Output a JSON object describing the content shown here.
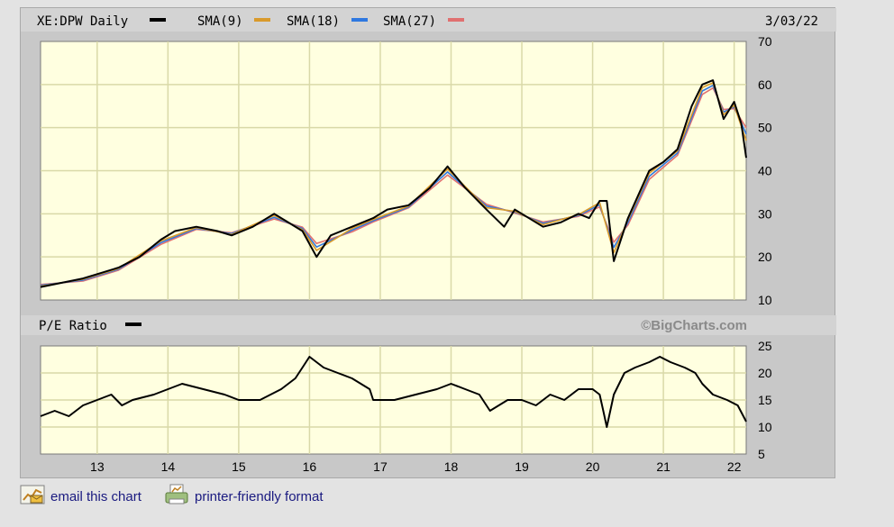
{
  "header": {
    "symbol_label": "XE:DPW Daily",
    "date": "3/03/22",
    "legend": [
      {
        "label": "SMA(9)",
        "color": "#d99a2b"
      },
      {
        "label": "SMA(18)",
        "color": "#2f78e0"
      },
      {
        "label": "SMA(27)",
        "color": "#e07070"
      }
    ],
    "price_line_color": "#000000"
  },
  "pe_panel": {
    "label": "P/E Ratio",
    "watermark": "©BigCharts.com"
  },
  "colors": {
    "plot_bg": "#ffffe0",
    "grid": "#d9d9a8",
    "frame": "#c8c8c8"
  },
  "links": [
    {
      "label": "email this chart",
      "icon": "email-chart-icon"
    },
    {
      "label": "printer-friendly format",
      "icon": "printer-icon"
    }
  ],
  "chart_data": [
    {
      "type": "line",
      "title": "XE:DPW Daily",
      "x_ticks": [
        "13",
        "14",
        "15",
        "16",
        "17",
        "18",
        "19",
        "20",
        "21",
        "22"
      ],
      "y_ticks": [
        10,
        20,
        30,
        40,
        50,
        60,
        70
      ],
      "ylim": [
        10,
        70
      ],
      "xlim": [
        2012.2,
        2022.17
      ],
      "grid": true,
      "series": [
        {
          "name": "XE:DPW Daily",
          "color": "#000000",
          "x": [
            2012.2,
            2012.5,
            2012.8,
            2013.0,
            2013.3,
            2013.6,
            2013.9,
            2014.1,
            2014.4,
            2014.7,
            2014.9,
            2015.2,
            2015.5,
            2015.7,
            2015.9,
            2016.1,
            2016.3,
            2016.6,
            2016.9,
            2017.1,
            2017.4,
            2017.7,
            2017.95,
            2018.2,
            2018.5,
            2018.75,
            2018.9,
            2019.0,
            2019.3,
            2019.55,
            2019.8,
            2019.95,
            2020.1,
            2020.2,
            2020.3,
            2020.5,
            2020.8,
            2021.0,
            2021.2,
            2021.4,
            2021.55,
            2021.7,
            2021.85,
            2022.0,
            2022.1,
            2022.17
          ],
          "y": [
            13,
            14,
            15,
            16,
            17.5,
            20,
            24,
            26,
            27,
            26,
            25,
            27,
            30,
            28,
            26,
            20,
            25,
            27,
            29,
            31,
            32,
            36,
            41,
            36,
            31,
            27,
            31,
            30,
            27,
            28,
            30,
            29,
            33,
            33,
            19,
            29,
            40,
            42,
            45,
            55,
            60,
            61,
            52,
            56,
            51,
            43
          ]
        },
        {
          "name": "SMA(9)",
          "color": "#d99a2b",
          "x": [
            2012.2,
            2012.8,
            2013.3,
            2013.9,
            2014.4,
            2014.9,
            2015.5,
            2015.9,
            2016.1,
            2016.6,
            2016.9,
            2017.4,
            2017.95,
            2018.5,
            2018.9,
            2019.3,
            2019.8,
            2020.1,
            2020.3,
            2020.5,
            2020.8,
            2021.2,
            2021.55,
            2021.7,
            2021.85,
            2022.0,
            2022.17
          ],
          "y": [
            13.2,
            14.8,
            17.3,
            23.7,
            26.8,
            25.2,
            29.6,
            26.3,
            21.5,
            26.6,
            28.7,
            31.8,
            40.4,
            31.4,
            30.6,
            27.5,
            29.8,
            32.6,
            21,
            28.6,
            39.4,
            44.6,
            59.3,
            60.4,
            53,
            55.2,
            47
          ]
        },
        {
          "name": "SMA(18)",
          "color": "#2f78e0",
          "x": [
            2012.2,
            2012.8,
            2013.3,
            2013.9,
            2014.4,
            2014.9,
            2015.5,
            2015.9,
            2016.1,
            2016.6,
            2016.9,
            2017.4,
            2017.95,
            2018.5,
            2018.9,
            2019.3,
            2019.8,
            2020.1,
            2020.3,
            2020.5,
            2020.8,
            2021.2,
            2021.55,
            2021.7,
            2021.85,
            2022.0,
            2022.17
          ],
          "y": [
            13.4,
            14.6,
            17.1,
            23.3,
            26.6,
            25.4,
            29.2,
            26.6,
            22.3,
            26.2,
            28.4,
            31.6,
            39.7,
            31.8,
            30.4,
            27.8,
            29.6,
            32.1,
            22.2,
            28,
            38.7,
            44.1,
            58.5,
            59.8,
            53.6,
            54.8,
            48.5
          ]
        },
        {
          "name": "SMA(27)",
          "color": "#e07070",
          "x": [
            2012.2,
            2012.8,
            2013.3,
            2013.9,
            2014.4,
            2014.9,
            2015.5,
            2015.9,
            2016.1,
            2016.6,
            2016.9,
            2017.4,
            2017.95,
            2018.5,
            2018.9,
            2019.3,
            2019.8,
            2020.1,
            2020.3,
            2020.5,
            2020.8,
            2021.2,
            2021.55,
            2021.7,
            2021.85,
            2022.0,
            2022.17
          ],
          "y": [
            13.6,
            14.4,
            16.9,
            22.9,
            26.4,
            25.6,
            28.8,
            26.9,
            23.1,
            25.8,
            28.1,
            31.4,
            39,
            32.2,
            30.2,
            28.1,
            29.4,
            31.6,
            23.4,
            27.4,
            38,
            43.6,
            57.7,
            59.2,
            54.2,
            54.4,
            50
          ]
        }
      ]
    },
    {
      "type": "line",
      "title": "P/E Ratio",
      "x_ticks": [
        "13",
        "14",
        "15",
        "16",
        "17",
        "18",
        "19",
        "20",
        "21",
        "22"
      ],
      "y_ticks": [
        5,
        10,
        15,
        20,
        25
      ],
      "ylim": [
        5,
        25
      ],
      "xlim": [
        2012.2,
        2022.17
      ],
      "grid": true,
      "series": [
        {
          "name": "P/E Ratio",
          "color": "#000000",
          "x": [
            2012.2,
            2012.4,
            2012.6,
            2012.8,
            2013.0,
            2013.2,
            2013.35,
            2013.5,
            2013.8,
            2014.0,
            2014.2,
            2014.5,
            2014.8,
            2015.0,
            2015.3,
            2015.6,
            2015.8,
            2015.9,
            2016.0,
            2016.2,
            2016.4,
            2016.6,
            2016.85,
            2016.9,
            2017.2,
            2017.5,
            2017.8,
            2018.0,
            2018.2,
            2018.4,
            2018.55,
            2018.8,
            2019.0,
            2019.2,
            2019.4,
            2019.6,
            2019.8,
            2020.0,
            2020.1,
            2020.15,
            2020.2,
            2020.3,
            2020.45,
            2020.6,
            2020.8,
            2020.95,
            2021.1,
            2021.3,
            2021.45,
            2021.55,
            2021.7,
            2021.9,
            2022.05,
            2022.17
          ],
          "y": [
            12,
            13,
            12,
            14,
            15,
            16,
            14,
            15,
            16,
            17,
            18,
            17,
            16,
            15,
            15,
            17,
            19,
            21,
            23,
            21,
            20,
            19,
            17,
            15,
            15,
            16,
            17,
            18,
            17,
            16,
            13,
            15,
            15,
            14,
            16,
            15,
            17,
            17,
            16,
            13,
            10,
            16,
            20,
            21,
            22,
            23,
            22,
            21,
            20,
            18,
            16,
            15,
            14,
            11
          ]
        }
      ]
    }
  ]
}
